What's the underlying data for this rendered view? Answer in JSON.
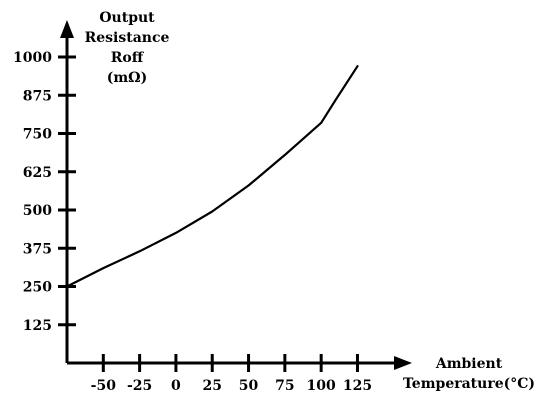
{
  "chart_data": {
    "type": "line",
    "title": "",
    "ylabel_lines": [
      "Output",
      "Resistance",
      "Roff",
      "(mΩ)"
    ],
    "xlabel_lines": [
      "Ambient",
      "Temperature(°C)"
    ],
    "xlim": [
      -75,
      135
    ],
    "ylim": [
      0,
      1060
    ],
    "x_ticks": [
      -50,
      -25,
      0,
      25,
      50,
      75,
      100,
      125
    ],
    "x_tick_labels": [
      "-50",
      "-25",
      "0",
      "25",
      "50",
      "75",
      "100",
      "125"
    ],
    "y_ticks": [
      125,
      250,
      375,
      500,
      625,
      750,
      875,
      1000
    ],
    "y_tick_labels": [
      "125",
      "250",
      "375",
      "500",
      "625",
      "750",
      "875",
      "1000"
    ],
    "grid": false,
    "legend": "none",
    "series": [
      {
        "x": [
          -75,
          -50,
          -25,
          0,
          25,
          50,
          75,
          100,
          110,
          125
        ],
        "y": [
          250,
          310,
          365,
          425,
          495,
          580,
          680,
          785,
          860,
          970
        ]
      }
    ]
  }
}
